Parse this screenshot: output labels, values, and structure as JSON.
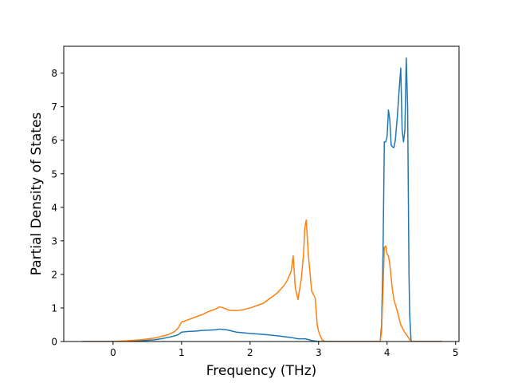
{
  "chart_data": {
    "type": "line",
    "xlabel": "Frequency (THz)",
    "ylabel": "Partial Density of States",
    "xlim": [
      -0.72,
      5.05
    ],
    "ylim": [
      0,
      8.8
    ],
    "xticks": [
      0,
      1,
      2,
      3,
      4,
      5
    ],
    "yticks": [
      0,
      1,
      2,
      3,
      4,
      5,
      6,
      7,
      8
    ],
    "grid": false,
    "series": [
      {
        "color": "#1f77b4",
        "x": [
          -0.45,
          0.0,
          0.2,
          0.4,
          0.6,
          0.7,
          0.8,
          0.9,
          0.95,
          1.0,
          1.1,
          1.2,
          1.3,
          1.4,
          1.5,
          1.55,
          1.6,
          1.65,
          1.7,
          1.8,
          2.0,
          2.2,
          2.4,
          2.6,
          2.7,
          2.8,
          2.85,
          2.9,
          3.0,
          3.1,
          3.5,
          3.9,
          3.92,
          3.94,
          3.96,
          3.98,
          4.0,
          4.02,
          4.04,
          4.06,
          4.08,
          4.1,
          4.12,
          4.15,
          4.18,
          4.2,
          4.22,
          4.24,
          4.26,
          4.28,
          4.3,
          4.31,
          4.32,
          4.33,
          4.35,
          4.4,
          4.8
        ],
        "y": [
          0.0,
          0.0,
          0.01,
          0.02,
          0.05,
          0.08,
          0.12,
          0.17,
          0.2,
          0.28,
          0.3,
          0.31,
          0.33,
          0.34,
          0.35,
          0.37,
          0.36,
          0.35,
          0.33,
          0.28,
          0.24,
          0.21,
          0.17,
          0.12,
          0.08,
          0.08,
          0.06,
          0.03,
          0.0,
          0.0,
          0.0,
          0.0,
          0.5,
          2.5,
          5.95,
          5.95,
          6.1,
          6.9,
          6.6,
          5.85,
          5.8,
          5.78,
          6.0,
          6.7,
          7.6,
          8.15,
          6.3,
          5.95,
          6.3,
          8.45,
          7.0,
          4.5,
          2.0,
          0.8,
          0.0,
          0.0,
          0.0
        ]
      },
      {
        "color": "#ff7f0e",
        "x": [
          -0.45,
          0.0,
          0.2,
          0.4,
          0.6,
          0.7,
          0.8,
          0.9,
          0.95,
          1.0,
          1.1,
          1.2,
          1.3,
          1.4,
          1.5,
          1.55,
          1.6,
          1.65,
          1.7,
          1.8,
          1.9,
          2.0,
          2.1,
          2.2,
          2.3,
          2.4,
          2.5,
          2.55,
          2.6,
          2.63,
          2.66,
          2.7,
          2.75,
          2.78,
          2.8,
          2.82,
          2.85,
          2.9,
          2.95,
          2.98,
          3.0,
          3.05,
          3.1,
          3.5,
          3.9,
          3.92,
          3.94,
          3.96,
          3.98,
          4.0,
          4.02,
          4.04,
          4.06,
          4.08,
          4.1,
          4.15,
          4.2,
          4.25,
          4.3,
          4.35,
          4.4,
          4.8
        ],
        "y": [
          0.0,
          0.0,
          0.02,
          0.05,
          0.1,
          0.15,
          0.2,
          0.3,
          0.4,
          0.58,
          0.65,
          0.73,
          0.8,
          0.9,
          0.97,
          1.03,
          1.01,
          0.97,
          0.93,
          0.92,
          0.95,
          1.0,
          1.07,
          1.15,
          1.3,
          1.45,
          1.68,
          1.85,
          2.1,
          2.55,
          1.6,
          1.25,
          1.9,
          2.6,
          3.4,
          3.62,
          2.6,
          1.5,
          1.3,
          0.5,
          0.3,
          0.05,
          0.0,
          0.0,
          0.0,
          0.3,
          1.5,
          2.8,
          2.85,
          2.6,
          2.55,
          2.3,
          1.9,
          1.5,
          1.25,
          0.9,
          0.5,
          0.3,
          0.15,
          0.0,
          0.0,
          0.0
        ]
      }
    ]
  }
}
